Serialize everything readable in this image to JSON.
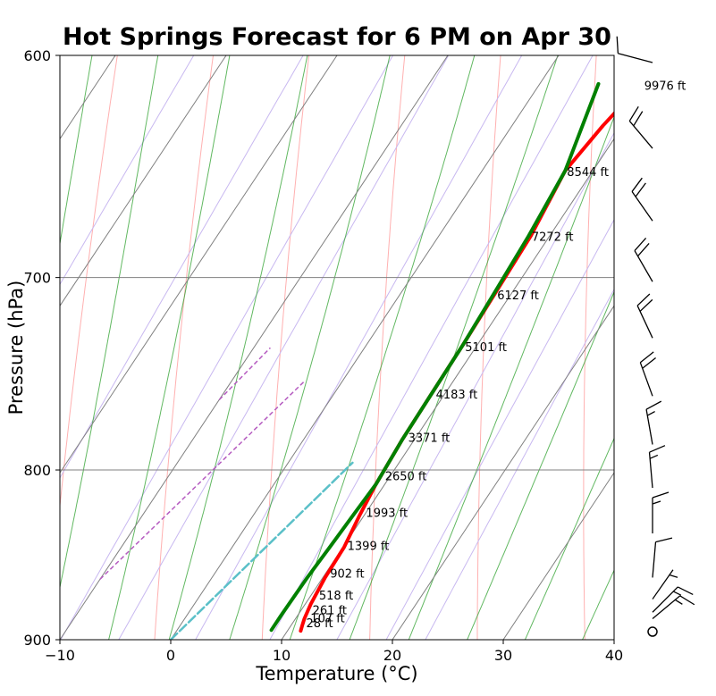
{
  "chart_data": {
    "type": "line",
    "title": "Hot Springs Forecast for 6 PM on Apr 30",
    "xlabel": "Temperature ($^\\circ$C)",
    "xlabel_display": "Temperature (°C)",
    "ylabel": "Pressure (hPa)",
    "xlim": [
      -10,
      40
    ],
    "ylim": [
      900,
      600
    ],
    "yscale": "log",
    "xticks": [
      "-10",
      "0",
      "10",
      "20",
      "30",
      "40"
    ],
    "yticks": [
      "600",
      "700",
      "800",
      "900"
    ],
    "grid_isobars": [
      700,
      800
    ],
    "series": [
      {
        "role": "temperature",
        "color": "#ff0000",
        "points": [
          {
            "p": 894.5,
            "t": 11.2
          },
          {
            "p": 891,
            "t": 11.0
          },
          {
            "p": 887,
            "t": 10.8
          },
          {
            "p": 878,
            "t": 10.5
          },
          {
            "p": 862,
            "t": 10.2
          },
          {
            "p": 844,
            "t": 10.1
          },
          {
            "p": 826,
            "t": 9.6
          },
          {
            "p": 808,
            "t": 9.2
          },
          {
            "p": 783,
            "t": 8.9
          },
          {
            "p": 758,
            "t": 8.8
          },
          {
            "p": 733,
            "t": 8.7
          },
          {
            "p": 705,
            "t": 8.5
          },
          {
            "p": 680,
            "t": 8.3
          },
          {
            "p": 650,
            "t": 7.5
          },
          {
            "p": 630,
            "t": 8.2
          },
          {
            "p": 612,
            "t": 9.2
          }
        ]
      },
      {
        "role": "dewpoint",
        "color": "#008000",
        "points": [
          {
            "p": 894,
            "t": 8.5
          },
          {
            "p": 885,
            "t": 8.5
          },
          {
            "p": 862,
            "t": 8.6
          },
          {
            "p": 844,
            "t": 8.8
          },
          {
            "p": 826,
            "t": 9.0
          },
          {
            "p": 808,
            "t": 9.2
          },
          {
            "p": 783,
            "t": 8.9
          },
          {
            "p": 758,
            "t": 8.8
          },
          {
            "p": 733,
            "t": 8.7
          },
          {
            "p": 705,
            "t": 8.4
          },
          {
            "p": 680,
            "t": 8.1
          },
          {
            "p": 650,
            "t": 7.5
          },
          {
            "p": 612,
            "t": 5.3
          }
        ]
      },
      {
        "role": "parcel",
        "color": "#5bc0c8",
        "style": "dashed",
        "points": [
          {
            "p": 900,
            "t": 0.0
          },
          {
            "p": 796,
            "t": 5.8
          }
        ]
      },
      {
        "role": "reference",
        "color": "#b55bc0",
        "style": "dashed",
        "segments": [
          [
            {
              "p": 863,
              "t": -10.0
            },
            {
              "p": 752,
              "t": -3.4
            }
          ],
          [
            {
              "p": 762,
              "t": -10.0
            },
            {
              "p": 735,
              "t": -8.5
            }
          ]
        ]
      }
    ],
    "height_labels": [
      {
        "text": "9976 ft",
        "p": 612.5,
        "t": 9.5
      },
      {
        "text": "8544 ft",
        "p": 650.3,
        "t": 7.7
      },
      {
        "text": "7272 ft",
        "p": 680.2,
        "t": 8.4
      },
      {
        "text": "6127 ft",
        "p": 708.5,
        "t": 8.8
      },
      {
        "text": "5101 ft",
        "p": 734.4,
        "t": 9.0
      },
      {
        "text": "4183 ft",
        "p": 758.9,
        "t": 9.2
      },
      {
        "text": "3371 ft",
        "p": 782.1,
        "t": 9.3
      },
      {
        "text": "2650 ft",
        "p": 803.1,
        "t": 9.5
      },
      {
        "text": "1993 ft",
        "p": 824.0,
        "t": 10.0
      },
      {
        "text": "1399 ft",
        "p": 843.1,
        "t": 10.3
      },
      {
        "text": "902 ft",
        "p": 859.5,
        "t": 10.4
      },
      {
        "text": "518 ft",
        "p": 872.5,
        "t": 10.7
      },
      {
        "text": "261 ft",
        "p": 881.5,
        "t": 11.0
      },
      {
        "text": "107 ft",
        "p": 886.5,
        "t": 11.3
      },
      {
        "text": "28 ft",
        "p": 889.5,
        "t": 11.2
      }
    ],
    "wind_barbs": [
      {
        "p": 603,
        "dir_deg": 285,
        "speed_kt": 10
      },
      {
        "p": 640,
        "dir_deg": 320,
        "speed_kt": 20
      },
      {
        "p": 673,
        "dir_deg": 325,
        "speed_kt": 20
      },
      {
        "p": 702,
        "dir_deg": 330,
        "speed_kt": 20
      },
      {
        "p": 730,
        "dir_deg": 335,
        "speed_kt": 20
      },
      {
        "p": 760,
        "dir_deg": 340,
        "speed_kt": 20
      },
      {
        "p": 786,
        "dir_deg": 350,
        "speed_kt": 15
      },
      {
        "p": 810,
        "dir_deg": 355,
        "speed_kt": 15
      },
      {
        "p": 836,
        "dir_deg": 0,
        "speed_kt": 15
      },
      {
        "p": 862,
        "dir_deg": 5,
        "speed_kt": 10
      },
      {
        "p": 875,
        "dir_deg": 35,
        "speed_kt": 5
      },
      {
        "p": 883,
        "dir_deg": 45,
        "speed_kt": 15
      },
      {
        "p": 887,
        "dir_deg": 50,
        "speed_kt": 15
      },
      {
        "p": 895,
        "dir_deg": 0,
        "speed_kt": 0
      }
    ],
    "background_lines": {
      "isotherm_color": "#808080",
      "dry_adiabat_color": "#ffb0b0",
      "moist_adiabat_color": "#2ca02c",
      "mixing_ratio_color": "#c8b8f0"
    }
  }
}
